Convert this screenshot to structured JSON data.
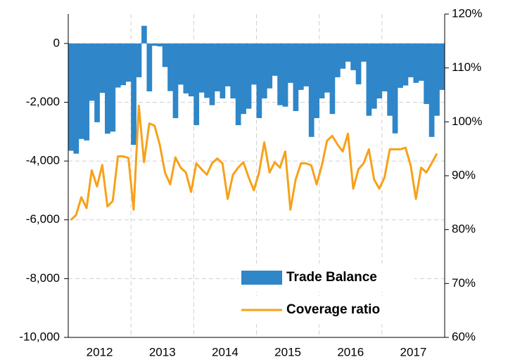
{
  "chart_data": {
    "type": "bar_line",
    "categories": [
      null,
      null,
      null,
      null,
      null,
      null,
      "2012",
      null,
      null,
      null,
      null,
      null,
      null,
      null,
      null,
      null,
      null,
      null,
      "2013",
      null,
      null,
      null,
      null,
      null,
      null,
      null,
      null,
      null,
      null,
      null,
      "2014",
      null,
      null,
      null,
      null,
      null,
      null,
      null,
      null,
      null,
      null,
      null,
      "2015",
      null,
      null,
      null,
      null,
      null,
      null,
      null,
      null,
      null,
      null,
      null,
      "2016",
      null,
      null,
      null,
      null,
      null,
      null,
      null,
      null,
      null,
      null,
      null,
      "2017",
      null,
      null,
      null,
      null,
      null
    ],
    "series": [
      {
        "name": "Trade Balance",
        "color": "#2f86c8",
        "kind": "bar",
        "axis": "y",
        "values": [
          -3650,
          -3750,
          -3250,
          -3300,
          -1950,
          -2680,
          -1680,
          -3070,
          -3000,
          -1500,
          -1420,
          -1300,
          -3450,
          -1150,
          600,
          -1630,
          -80,
          -100,
          -800,
          -1620,
          -2540,
          -1400,
          -1700,
          -1800,
          -2780,
          -1670,
          -1850,
          -2100,
          -1630,
          -1870,
          -1460,
          -1870,
          -2780,
          -2400,
          -2220,
          -1400,
          -2540,
          -1870,
          -1530,
          -1100,
          -2100,
          -2150,
          -1340,
          -2300,
          -1580,
          -1460,
          -3180,
          -2540,
          -1870,
          -1670,
          -2400,
          -1150,
          -860,
          -620,
          -910,
          -1390,
          -620,
          -2460,
          -2220,
          -1870,
          -1630,
          -2460,
          -3060,
          -1510,
          -1430,
          -1150,
          -1340,
          -1270,
          -2060,
          -3180,
          -2460,
          -1580
        ]
      },
      {
        "name": "Coverage ratio",
        "color": "#f7a11a",
        "kind": "line",
        "axis": "y2",
        "values": [
          81.8,
          82.7,
          86,
          84,
          91,
          88,
          92,
          84.3,
          85.3,
          93.6,
          93.6,
          93.3,
          83.7,
          103,
          92.5,
          99.7,
          99.3,
          95.8,
          90.6,
          88.4,
          93.4,
          91.5,
          90.6,
          87,
          92.3,
          91.2,
          90.2,
          92.3,
          93.2,
          92.3,
          85.7,
          90.2,
          91.5,
          92.5,
          89.7,
          87.3,
          90.6,
          96.2,
          90.6,
          92.5,
          91.5,
          94.5,
          83.7,
          89.3,
          92.3,
          92.3,
          91.9,
          88.4,
          91.9,
          96.5,
          97.4,
          95.8,
          94.5,
          97.8,
          87.6,
          91.2,
          92.3,
          94.9,
          89.3,
          87.6,
          89.7,
          94.9,
          94.9,
          94.9,
          95.2,
          91.9,
          85.7,
          91.5,
          90.6,
          92.3,
          94.1,
          null
        ]
      }
    ],
    "ylim": [
      -10000,
      1000
    ],
    "yticks": [
      {
        "value": -10000,
        "label": "-10,000"
      },
      {
        "value": -8000,
        "label": "-8,000"
      },
      {
        "value": -6000,
        "label": "-6,000"
      },
      {
        "value": -4000,
        "label": "-4,000"
      },
      {
        "value": -2000,
        "label": "-2,000"
      },
      0
    ],
    "y2lim": [
      60,
      120
    ],
    "y2ticks": [
      {
        "value": 60,
        "label": "60%"
      },
      {
        "value": 70,
        "label": "70%"
      },
      {
        "value": 80,
        "label": "80%"
      },
      {
        "value": 90,
        "label": "90%"
      },
      {
        "value": 100,
        "label": "100%"
      },
      {
        "value": 110,
        "label": "110%"
      },
      {
        "value": 120,
        "label": "120%"
      }
    ],
    "grid": true,
    "legend": "lower right"
  }
}
